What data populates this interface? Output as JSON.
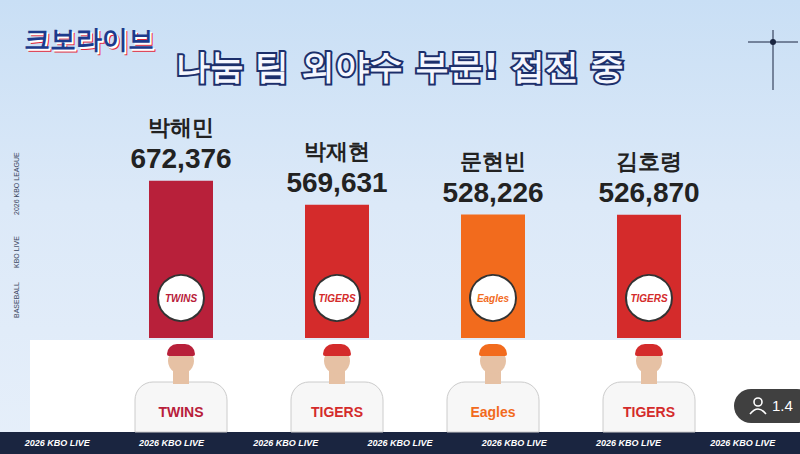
{
  "header": {
    "logo": "크보라이브",
    "side_texts": [
      "2026 KBO LEAGUE",
      "KBO LIVE",
      "BASEBALL"
    ],
    "footer_text": "2026 KBO LIVE",
    "viewer_count": "1.4"
  },
  "teams": [
    "TWINS",
    "TIGERS",
    "Eagles",
    "TIGERS"
  ],
  "chart_data": {
    "type": "bar",
    "title": "나눔 팀 외야수 부문! 접전 중",
    "categories": [
      "박해민",
      "박재현",
      "문현빈",
      "김호령"
    ],
    "values": [
      672376,
      569631,
      528226,
      526870
    ],
    "value_labels": [
      "672,376",
      "569,631",
      "528,226",
      "526,870"
    ],
    "colors": [
      "#b8203a",
      "#d42b2b",
      "#f26b1d",
      "#d42b2b"
    ],
    "ylim": [
      0,
      800000
    ],
    "grid": false,
    "data_labels": true,
    "tick_labels": false
  }
}
